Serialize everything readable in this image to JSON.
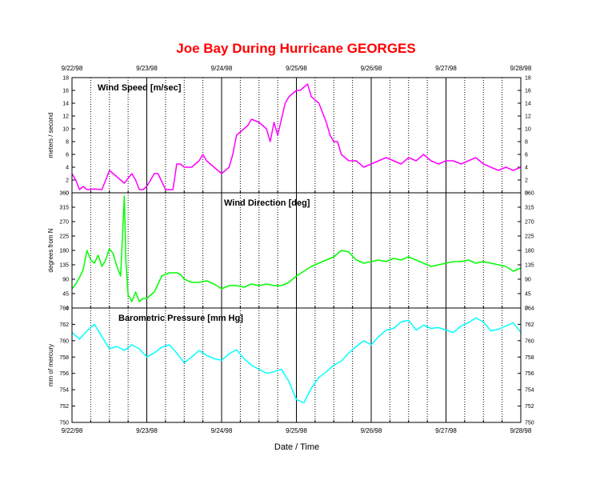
{
  "title": "Joe Bay During Hurricane GEORGES",
  "title_color": "#ff0000",
  "xlabel": "Date / Time",
  "date_labels": [
    "9/22/98",
    "9/23/98",
    "9/24/98",
    "9/25/98",
    "9/26/98",
    "9/27/98",
    "9/28/98"
  ],
  "chart_data": [
    {
      "type": "line",
      "title": "Wind Speed [m/sec]",
      "ylabel": "meters / second",
      "color": "#ff00ff",
      "ylim": [
        0,
        18
      ],
      "yticks": [
        "0",
        "2",
        "4",
        "6",
        "8",
        "10",
        "12",
        "14",
        "16",
        "18"
      ],
      "x": [
        0.0,
        0.05,
        0.1,
        0.15,
        0.2,
        0.3,
        0.4,
        0.45,
        0.5,
        0.55,
        0.6,
        0.7,
        0.8,
        0.85,
        0.9,
        0.95,
        1.0,
        1.05,
        1.1,
        1.15,
        1.25,
        1.35,
        1.4,
        1.45,
        1.5,
        1.6,
        1.7,
        1.75,
        1.8,
        1.9,
        2.0,
        2.05,
        2.1,
        2.15,
        2.2,
        2.3,
        2.35,
        2.4,
        2.5,
        2.6,
        2.65,
        2.7,
        2.75,
        2.8,
        2.85,
        2.9,
        2.95,
        3.0,
        3.05,
        3.1,
        3.15,
        3.2,
        3.3,
        3.4,
        3.45,
        3.5,
        3.55,
        3.6,
        3.7,
        3.8,
        3.9,
        4.0,
        4.1,
        4.2,
        4.3,
        4.4,
        4.5,
        4.6,
        4.7,
        4.8,
        4.9,
        5.0,
        5.1,
        5.2,
        5.3,
        5.4,
        5.5,
        5.6,
        5.7,
        5.8,
        5.9,
        6.0
      ],
      "y": [
        3,
        2,
        0.5,
        1,
        0.5,
        0.6,
        0.5,
        2,
        3.5,
        3,
        2.5,
        1.5,
        3,
        2,
        0.5,
        0.5,
        1,
        2,
        3,
        3,
        0.5,
        0.5,
        4.5,
        4.5,
        4,
        4,
        5,
        6,
        5,
        4,
        3,
        3.5,
        4,
        6,
        9,
        10,
        10.5,
        11.5,
        11,
        10,
        8,
        11,
        9,
        11.5,
        14,
        15,
        15.5,
        16,
        16,
        16.5,
        17,
        15,
        14,
        11,
        9,
        8,
        8,
        6,
        5,
        5,
        4,
        4.5,
        5,
        5.5,
        5,
        4.5,
        5.5,
        5,
        6,
        5,
        4.5,
        5,
        5,
        4.5,
        5,
        5.5,
        4.5,
        4,
        3.5,
        4,
        3.5,
        4
      ]
    },
    {
      "type": "line",
      "title": "Wind Direction [deg]",
      "ylabel": "degrees from N",
      "color": "#00ff00",
      "ylim": [
        0,
        360
      ],
      "yticks": [
        "0",
        "45",
        "90",
        "135",
        "180",
        "225",
        "270",
        "315",
        "360"
      ],
      "x": [
        0.0,
        0.05,
        0.1,
        0.15,
        0.2,
        0.25,
        0.3,
        0.35,
        0.4,
        0.45,
        0.5,
        0.55,
        0.6,
        0.65,
        0.7,
        0.72,
        0.75,
        0.78,
        0.8,
        0.85,
        0.9,
        0.95,
        1.0,
        1.05,
        1.1,
        1.2,
        1.3,
        1.4,
        1.45,
        1.5,
        1.6,
        1.7,
        1.8,
        1.9,
        2.0,
        2.1,
        2.2,
        2.3,
        2.4,
        2.5,
        2.6,
        2.7,
        2.8,
        2.9,
        3.0,
        3.1,
        3.2,
        3.3,
        3.4,
        3.5,
        3.6,
        3.7,
        3.8,
        3.9,
        4.0,
        4.1,
        4.2,
        4.3,
        4.4,
        4.5,
        4.6,
        4.7,
        4.8,
        4.9,
        5.0,
        5.1,
        5.2,
        5.3,
        5.4,
        5.5,
        5.6,
        5.7,
        5.8,
        5.9,
        6.0
      ],
      "y": [
        60,
        75,
        95,
        120,
        180,
        150,
        140,
        165,
        130,
        150,
        185,
        170,
        130,
        100,
        350,
        150,
        40,
        30,
        20,
        50,
        20,
        30,
        30,
        40,
        50,
        100,
        110,
        110,
        105,
        90,
        80,
        80,
        85,
        75,
        60,
        70,
        70,
        65,
        75,
        70,
        75,
        70,
        70,
        80,
        100,
        115,
        130,
        140,
        150,
        160,
        180,
        175,
        150,
        140,
        145,
        150,
        145,
        155,
        150,
        160,
        150,
        140,
        130,
        135,
        140,
        145,
        145,
        150,
        140,
        145,
        140,
        135,
        130,
        115,
        125
      ]
    },
    {
      "type": "line",
      "title": "Barometric Pressure [mm Hg]",
      "ylabel": "mm of mercury",
      "color": "#00ffff",
      "ylim": [
        750,
        764
      ],
      "yticks": [
        "750",
        "752",
        "754",
        "756",
        "758",
        "760",
        "762",
        "764"
      ],
      "x": [
        0.0,
        0.1,
        0.2,
        0.3,
        0.4,
        0.5,
        0.6,
        0.7,
        0.8,
        0.9,
        1.0,
        1.1,
        1.2,
        1.3,
        1.4,
        1.5,
        1.6,
        1.7,
        1.8,
        1.9,
        2.0,
        2.1,
        2.2,
        2.3,
        2.4,
        2.5,
        2.6,
        2.7,
        2.8,
        2.9,
        3.0,
        3.1,
        3.2,
        3.3,
        3.4,
        3.5,
        3.6,
        3.7,
        3.8,
        3.9,
        4.0,
        4.1,
        4.2,
        4.3,
        4.4,
        4.5,
        4.6,
        4.7,
        4.8,
        4.9,
        5.0,
        5.1,
        5.2,
        5.3,
        5.4,
        5.5,
        5.6,
        5.7,
        5.8,
        5.9,
        6.0
      ],
      "y": [
        761,
        760.2,
        761.2,
        762,
        760.5,
        759,
        759.3,
        758.8,
        759.5,
        759,
        758,
        758.5,
        759.2,
        759.5,
        758.5,
        757.3,
        758,
        758.8,
        758.2,
        757.8,
        757.6,
        758.4,
        758.9,
        757.8,
        757,
        756.5,
        756,
        756.2,
        756.5,
        755,
        752.8,
        752.4,
        754.2,
        755.5,
        756.2,
        757,
        757.5,
        758.5,
        759.3,
        760,
        759.5,
        760.5,
        761.3,
        761.5,
        762.3,
        762.5,
        761.3,
        761.9,
        761.5,
        761.6,
        761.3,
        761,
        761.8,
        762.2,
        762.8,
        762.3,
        761.2,
        761.4,
        761.8,
        762.2,
        761
      ]
    }
  ]
}
